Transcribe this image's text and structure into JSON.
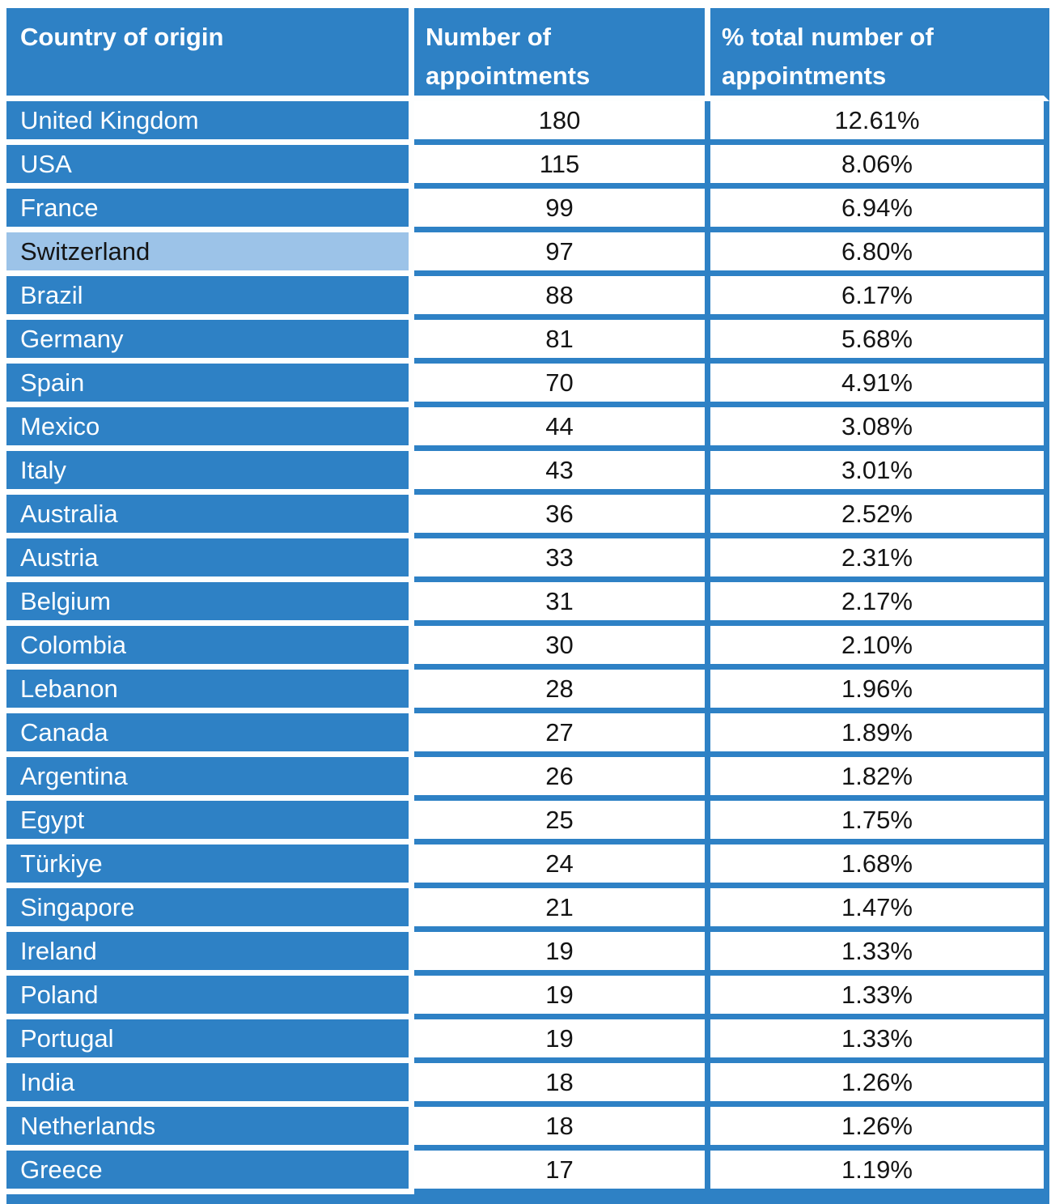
{
  "colors": {
    "primary_blue": "#2E81C5",
    "highlight_blue": "#9CC3E8",
    "separator_white": "#FDFEFE",
    "header_text": "#FFFFFF",
    "body_text": "#141414"
  },
  "table": {
    "columns": [
      {
        "key": "country",
        "label": "Country of origin"
      },
      {
        "key": "appointments",
        "label": "Number of appointments"
      },
      {
        "key": "pct",
        "label": "% total number of appointments"
      }
    ],
    "rows": [
      {
        "country": "United Kingdom",
        "appointments": "180",
        "pct": "12.61%",
        "highlighted": false
      },
      {
        "country": "USA",
        "appointments": "115",
        "pct": "8.06%",
        "highlighted": false
      },
      {
        "country": "France",
        "appointments": "99",
        "pct": "6.94%",
        "highlighted": false
      },
      {
        "country": "Switzerland",
        "appointments": "97",
        "pct": "6.80%",
        "highlighted": true
      },
      {
        "country": "Brazil",
        "appointments": "88",
        "pct": "6.17%",
        "highlighted": false
      },
      {
        "country": "Germany",
        "appointments": "81",
        "pct": "5.68%",
        "highlighted": false
      },
      {
        "country": "Spain",
        "appointments": "70",
        "pct": "4.91%",
        "highlighted": false
      },
      {
        "country": "Mexico",
        "appointments": "44",
        "pct": "3.08%",
        "highlighted": false
      },
      {
        "country": "Italy",
        "appointments": "43",
        "pct": "3.01%",
        "highlighted": false
      },
      {
        "country": "Australia",
        "appointments": "36",
        "pct": "2.52%",
        "highlighted": false
      },
      {
        "country": "Austria",
        "appointments": "33",
        "pct": "2.31%",
        "highlighted": false
      },
      {
        "country": "Belgium",
        "appointments": "31",
        "pct": "2.17%",
        "highlighted": false
      },
      {
        "country": "Colombia",
        "appointments": "30",
        "pct": "2.10%",
        "highlighted": false
      },
      {
        "country": "Lebanon",
        "appointments": "28",
        "pct": "1.96%",
        "highlighted": false
      },
      {
        "country": "Canada",
        "appointments": "27",
        "pct": "1.89%",
        "highlighted": false
      },
      {
        "country": "Argentina",
        "appointments": "26",
        "pct": "1.82%",
        "highlighted": false
      },
      {
        "country": "Egypt",
        "appointments": "25",
        "pct": "1.75%",
        "highlighted": false
      },
      {
        "country": "Türkiye",
        "appointments": "24",
        "pct": "1.68%",
        "highlighted": false
      },
      {
        "country": "Singapore",
        "appointments": "21",
        "pct": "1.47%",
        "highlighted": false
      },
      {
        "country": "Ireland",
        "appointments": "19",
        "pct": "1.33%",
        "highlighted": false
      },
      {
        "country": "Poland",
        "appointments": "19",
        "pct": "1.33%",
        "highlighted": false
      },
      {
        "country": "Portugal",
        "appointments": "19",
        "pct": "1.33%",
        "highlighted": false
      },
      {
        "country": "India",
        "appointments": "18",
        "pct": "1.26%",
        "highlighted": false
      },
      {
        "country": "Netherlands",
        "appointments": "18",
        "pct": "1.26%",
        "highlighted": false
      },
      {
        "country": "Greece",
        "appointments": "17",
        "pct": "1.19%",
        "highlighted": false
      }
    ]
  },
  "chart_data": {
    "type": "table",
    "columns": [
      "Country of origin",
      "Number of appointments",
      "% total number of appointments"
    ],
    "rows": [
      [
        "United Kingdom",
        180,
        "12.61%"
      ],
      [
        "USA",
        115,
        "8.06%"
      ],
      [
        "France",
        99,
        "6.94%"
      ],
      [
        "Switzerland",
        97,
        "6.80%"
      ],
      [
        "Brazil",
        88,
        "6.17%"
      ],
      [
        "Germany",
        81,
        "5.68%"
      ],
      [
        "Spain",
        70,
        "4.91%"
      ],
      [
        "Mexico",
        44,
        "3.08%"
      ],
      [
        "Italy",
        43,
        "3.01%"
      ],
      [
        "Australia",
        36,
        "2.52%"
      ],
      [
        "Austria",
        33,
        "2.31%"
      ],
      [
        "Belgium",
        31,
        "2.17%"
      ],
      [
        "Colombia",
        30,
        "2.10%"
      ],
      [
        "Lebanon",
        28,
        "1.96%"
      ],
      [
        "Canada",
        27,
        "1.89%"
      ],
      [
        "Argentina",
        26,
        "1.82%"
      ],
      [
        "Egypt",
        25,
        "1.75%"
      ],
      [
        "Türkiye",
        24,
        "1.68%"
      ],
      [
        "Singapore",
        21,
        "1.47%"
      ],
      [
        "Ireland",
        19,
        "1.33%"
      ],
      [
        "Poland",
        19,
        "1.33%"
      ],
      [
        "Portugal",
        19,
        "1.33%"
      ],
      [
        "India",
        18,
        "1.26%"
      ],
      [
        "Netherlands",
        18,
        "1.26%"
      ],
      [
        "Greece",
        17,
        "1.19%"
      ]
    ]
  }
}
